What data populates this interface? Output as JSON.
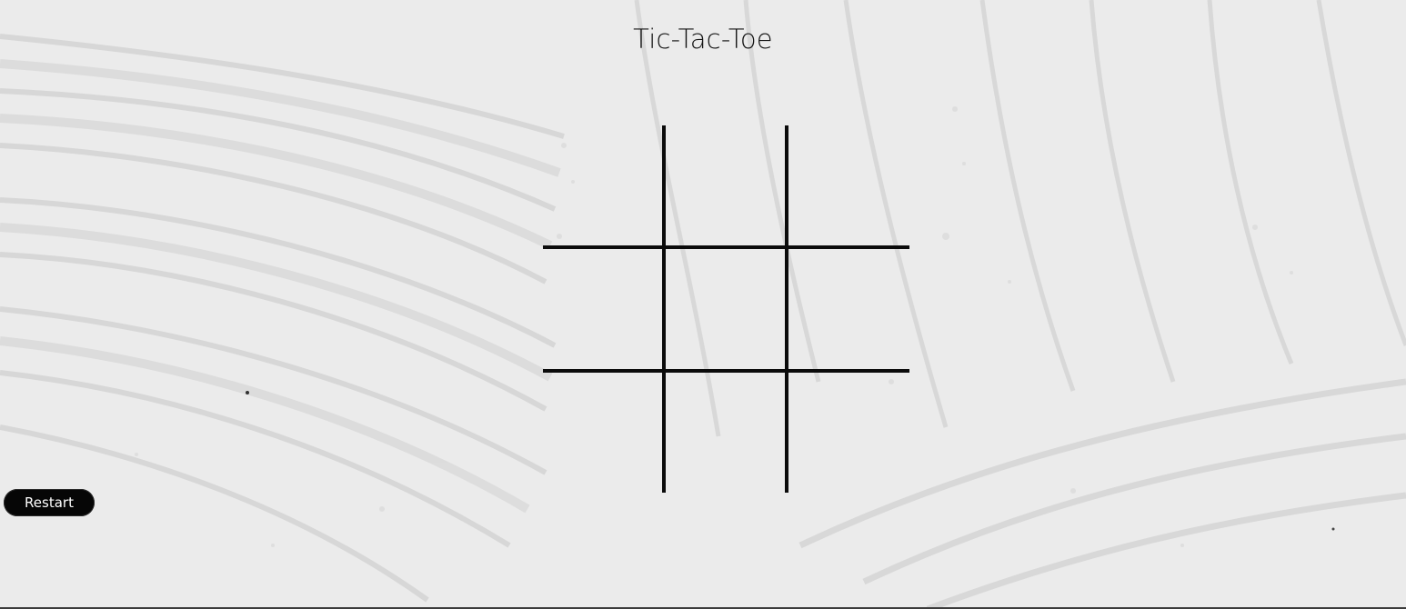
{
  "game": {
    "title": "Tic-Tac-Toe",
    "restart_label": "Restart",
    "board": [
      "",
      "",
      "",
      "",
      "",
      "",
      "",
      "",
      ""
    ]
  },
  "colors": {
    "background": "#e9e9e9",
    "grid": "#0b0b0b",
    "button": "#060606",
    "button_text": "#ffffff"
  }
}
